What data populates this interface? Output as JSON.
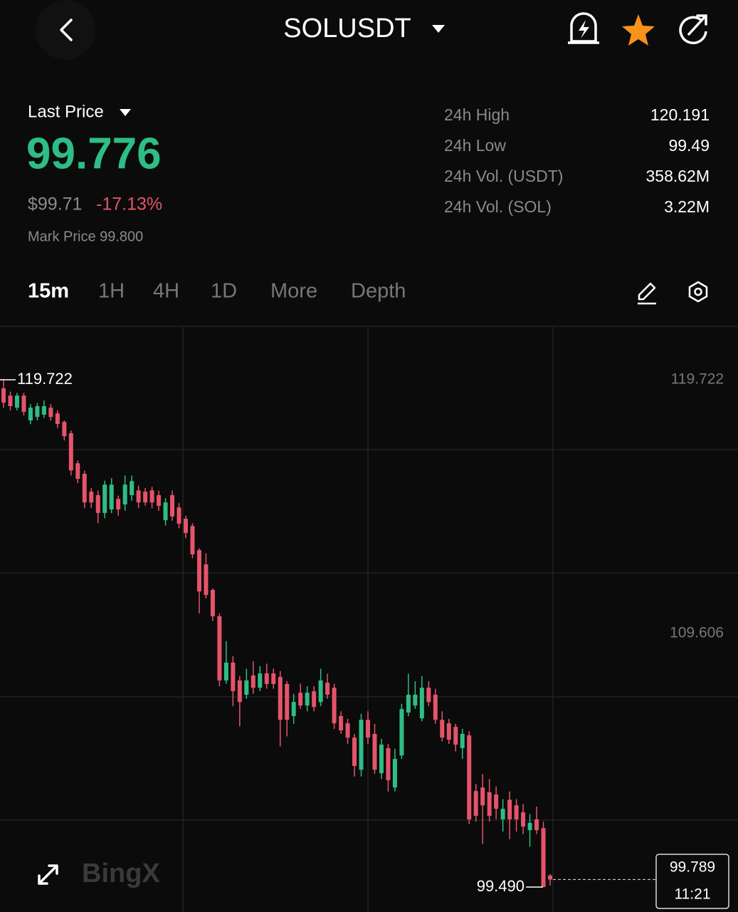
{
  "header": {
    "symbol": "SOLUSDT"
  },
  "price": {
    "label": "Last Price",
    "last": "99.776",
    "usd": "$99.71",
    "change": "-17.13%",
    "mark": "Mark Price 99.800"
  },
  "stats": [
    [
      "24h High",
      "120.191"
    ],
    [
      "24h Low",
      "99.49"
    ],
    [
      "24h Vol. (USDT)",
      "358.62M"
    ],
    [
      "24h Vol. (SOL)",
      "3.22M"
    ]
  ],
  "tabs": [
    "15m",
    "1H",
    "4H",
    "1D",
    "More",
    "Depth"
  ],
  "watermark": "BingX",
  "chart_data": {
    "type": "candlestick",
    "up_color": "#2ebd85",
    "down_color": "#e5546a",
    "ylim": [
      98.495,
      121.853
    ],
    "yticks": [
      119.722,
      109.606
    ],
    "max_annotation": 119.722,
    "min_annotation": {
      "value": 99.49,
      "label": "99.490"
    },
    "last_price": 99.789,
    "last_time": "11:21",
    "open": [
      119.38,
      119.09,
      118.61,
      119.09,
      118.1,
      118.24,
      118.33,
      118.61,
      118.38,
      118.04,
      117.59,
      116.39,
      115.97,
      115.26,
      115.12,
      114.41,
      114.55,
      114.97,
      114.75,
      115.12,
      115.31,
      115.26,
      115.31,
      115.12,
      114.12,
      115.12,
      114.63,
      114.18,
      113.89,
      112.93,
      112.36,
      111.34,
      110.29,
      107.73,
      108.44,
      107.73,
      107.16,
      107.93,
      107.44,
      108.01,
      108.01,
      107.87,
      107.59,
      106.31,
      107.24,
      106.73,
      107.3,
      106.87,
      107.64,
      107.44,
      106.31,
      106.02,
      105.45,
      104.17,
      106.16,
      105.6,
      104.03,
      105.03,
      103.46,
      104.74,
      106.45,
      106.73,
      106.22,
      107.44,
      107.16,
      106.16,
      106.02,
      105.88,
      105.03,
      105.54,
      103.32,
      103.46,
      103.27,
      103.18,
      102.19,
      102.97,
      102.75,
      102.47,
      101.76,
      102.19,
      101.84,
      99.95
    ],
    "high": [
      119.722,
      119.25,
      119.2,
      119.2,
      118.75,
      118.8,
      118.9,
      118.75,
      118.5,
      118.1,
      117.7,
      116.5,
      116.1,
      115.4,
      115.3,
      115.7,
      115.8,
      115.1,
      115.9,
      115.9,
      115.5,
      115.4,
      115.45,
      115.3,
      115.0,
      115.3,
      114.8,
      114.3,
      114.0,
      113.0,
      112.8,
      111.4,
      110.4,
      109.3,
      108.7,
      107.9,
      108.2,
      108.5,
      108.3,
      108.4,
      108.2,
      108.1,
      107.7,
      107.2,
      107.6,
      107.5,
      107.5,
      108.2,
      108.0,
      107.6,
      106.5,
      106.2,
      105.6,
      106.4,
      106.5,
      106.0,
      105.4,
      105.2,
      105.0,
      106.8,
      108.0,
      107.7,
      107.9,
      107.7,
      107.4,
      106.5,
      106.2,
      106.0,
      105.8,
      105.7,
      103.6,
      104.0,
      103.8,
      103.5,
      103.0,
      103.3,
      103.0,
      102.8,
      102.4,
      102.7,
      102.1,
      100.0
    ],
    "low": [
      118.6,
      118.5,
      118.5,
      118.3,
      117.95,
      118.1,
      118.2,
      118.1,
      117.8,
      117.3,
      115.9,
      115.6,
      114.6,
      114.6,
      114.0,
      114.2,
      114.4,
      114.3,
      114.5,
      114.9,
      114.6,
      114.7,
      114.6,
      114.5,
      113.9,
      114.1,
      113.8,
      113.4,
      112.6,
      110.4,
      111.0,
      110.1,
      107.5,
      107.6,
      106.7,
      105.9,
      107.0,
      107.2,
      107.3,
      107.4,
      107.4,
      105.1,
      105.5,
      106.0,
      106.6,
      106.5,
      106.5,
      106.7,
      107.0,
      105.8,
      105.6,
      105.2,
      103.9,
      103.9,
      105.2,
      104.0,
      103.8,
      103.3,
      103.3,
      104.6,
      106.3,
      106.6,
      106.1,
      106.7,
      106.0,
      105.3,
      105.2,
      104.9,
      104.6,
      102.0,
      102.1,
      101.2,
      102.1,
      102.2,
      101.7,
      101.4,
      101.7,
      101.6,
      101.1,
      101.6,
      99.49,
      99.55
    ],
    "close": [
      118.81,
      118.67,
      119.09,
      118.44,
      118.61,
      118.67,
      118.67,
      118.24,
      117.96,
      117.47,
      116.11,
      115.77,
      114.83,
      114.83,
      114.41,
      115.54,
      115.54,
      114.55,
      115.54,
      115.68,
      114.83,
      114.83,
      114.83,
      114.69,
      114.83,
      114.27,
      113.98,
      113.61,
      112.76,
      111.28,
      111.14,
      110.29,
      107.73,
      108.44,
      107.3,
      106.87,
      107.73,
      107.44,
      108.01,
      107.59,
      107.59,
      106.16,
      106.16,
      106.87,
      106.73,
      107.24,
      106.67,
      107.73,
      107.16,
      106.02,
      105.74,
      105.45,
      104.32,
      106.16,
      105.45,
      104.17,
      105.17,
      103.75,
      104.6,
      106.59,
      107.16,
      107.16,
      107.44,
      106.87,
      106.16,
      105.45,
      105.37,
      105.17,
      105.6,
      102.19,
      102.33,
      102.75,
      102.33,
      102.61,
      102.61,
      102.19,
      102.19,
      101.9,
      102.05,
      101.76,
      99.49,
      99.789
    ]
  }
}
